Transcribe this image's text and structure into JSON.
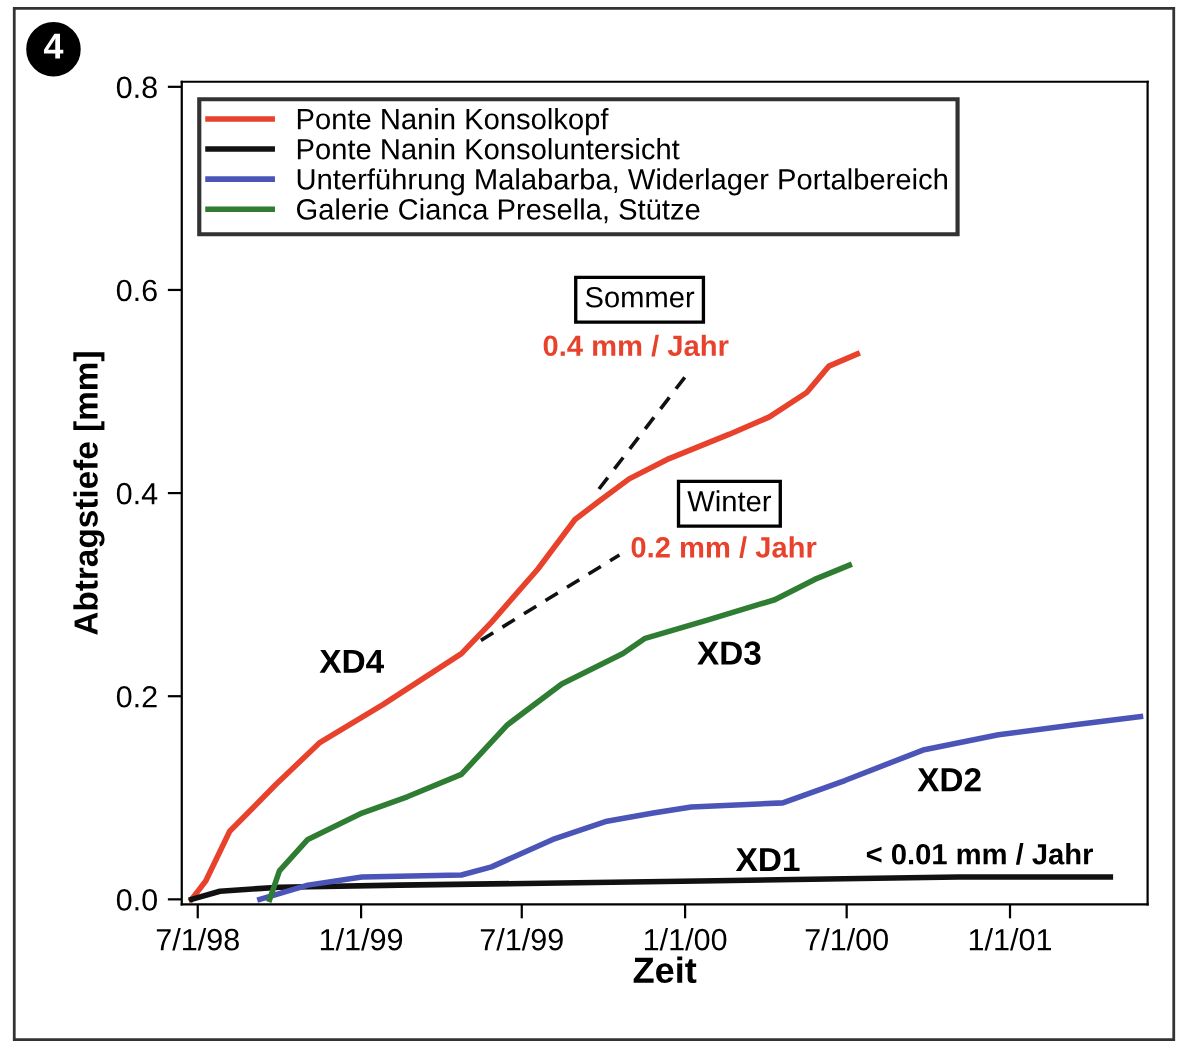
{
  "chart_data": {
    "type": "line",
    "xlabel": "Zeit",
    "ylabel": "Abtragstiefe [mm]",
    "xlim": [
      "1998-06-13",
      "2001-06-05"
    ],
    "ylim": [
      -0.005,
      0.805
    ],
    "xticks": [
      {
        "value": "1998-07-01",
        "label": "7/1/98"
      },
      {
        "value": "1999-01-01",
        "label": "1/1/99"
      },
      {
        "value": "1999-07-01",
        "label": "7/1/99"
      },
      {
        "value": "2000-01-01",
        "label": "1/1/00"
      },
      {
        "value": "2000-07-01",
        "label": "7/1/00"
      },
      {
        "value": "2001-01-01",
        "label": "1/1/01"
      }
    ],
    "yticks": [
      {
        "value": 0,
        "label": "0.0"
      },
      0.2,
      0.4,
      0.6,
      0.8
    ],
    "grid": false,
    "legend": "top left",
    "line_style": "solid",
    "marker": "none",
    "series": [
      {
        "name": "Ponte Nanin Konsolkopf",
        "color": "#e8412c",
        "x": [
          "1998-06-24",
          "1998-07-10",
          "1998-08-06",
          "1998-09-27",
          "1998-11-15",
          "1999-01-26",
          "1999-04-24",
          "1999-05-28",
          "1999-07-19",
          "1999-08-30",
          "1999-09-26",
          "1999-10-30",
          "1999-12-14",
          "2000-02-20",
          "2000-04-05",
          "2000-05-17",
          "2000-06-11",
          "2000-07-13"
        ],
        "values": [
          0.0,
          0.018,
          0.067,
          0.113,
          0.154,
          0.192,
          0.242,
          0.273,
          0.325,
          0.374,
          0.392,
          0.414,
          0.434,
          0.458,
          0.475,
          0.499,
          0.525,
          0.537
        ]
      },
      {
        "name": "Ponte Nanin Konsoluntersicht",
        "color": "#111111",
        "x": [
          "1998-06-24",
          "1998-07-26",
          "1998-10-01",
          "1999-02-13",
          "2000-01-17",
          "2000-11-04",
          "2001-04-24"
        ],
        "values": [
          0.0,
          0.008,
          0.012,
          0.014,
          0.018,
          0.022,
          0.022
        ]
      },
      {
        "name": "Unterführung Malabarba, Widerlager Portalbereich",
        "color": "#4b55b8",
        "x": [
          "1998-09-09",
          "1998-11-02",
          "1999-01-02",
          "1999-04-24",
          "1999-05-28",
          "1999-08-05",
          "1999-10-05",
          "1999-11-26",
          "2000-01-08",
          "2000-04-20",
          "2000-06-29",
          "2000-09-25",
          "2000-12-19",
          "2001-03-15",
          "2001-05-28"
        ],
        "values": [
          0.0,
          0.014,
          0.022,
          0.024,
          0.032,
          0.059,
          0.077,
          0.085,
          0.091,
          0.095,
          0.117,
          0.147,
          0.162,
          0.172,
          0.18
        ]
      },
      {
        "name": "Galerie Cianca Presella, Stütze",
        "color": "#2e7d32",
        "x": [
          "1998-09-20",
          "1998-10-01",
          "1998-11-02",
          "1999-01-02",
          "1999-02-22",
          "1999-04-24",
          "1999-06-15",
          "1999-08-15",
          "1999-10-23",
          "1999-11-17",
          "2000-01-26",
          "2000-04-11",
          "2000-05-26",
          "2000-07-04"
        ],
        "values": [
          0.0,
          0.028,
          0.059,
          0.085,
          0.101,
          0.123,
          0.172,
          0.212,
          0.242,
          0.257,
          0.275,
          0.295,
          0.315,
          0.329
        ]
      },
      {
        "color": "#111111",
        "line_style": "dashed",
        "x": [
          "1999-09-26",
          "2000-01-05"
        ],
        "values": [
          0.404,
          0.519
        ]
      },
      {
        "color": "#111111",
        "line_style": "dashed",
        "x": [
          "1999-05-16",
          "1999-10-19"
        ],
        "values": [
          0.255,
          0.339
        ]
      }
    ],
    "annotations": [
      "4",
      "Sommer",
      "0.4 mm / Jahr",
      "Winter",
      "0.2 mm / Jahr",
      "XD4",
      "XD3",
      "XD2",
      "XD1",
      "< 0.01 mm / Jahr"
    ]
  }
}
